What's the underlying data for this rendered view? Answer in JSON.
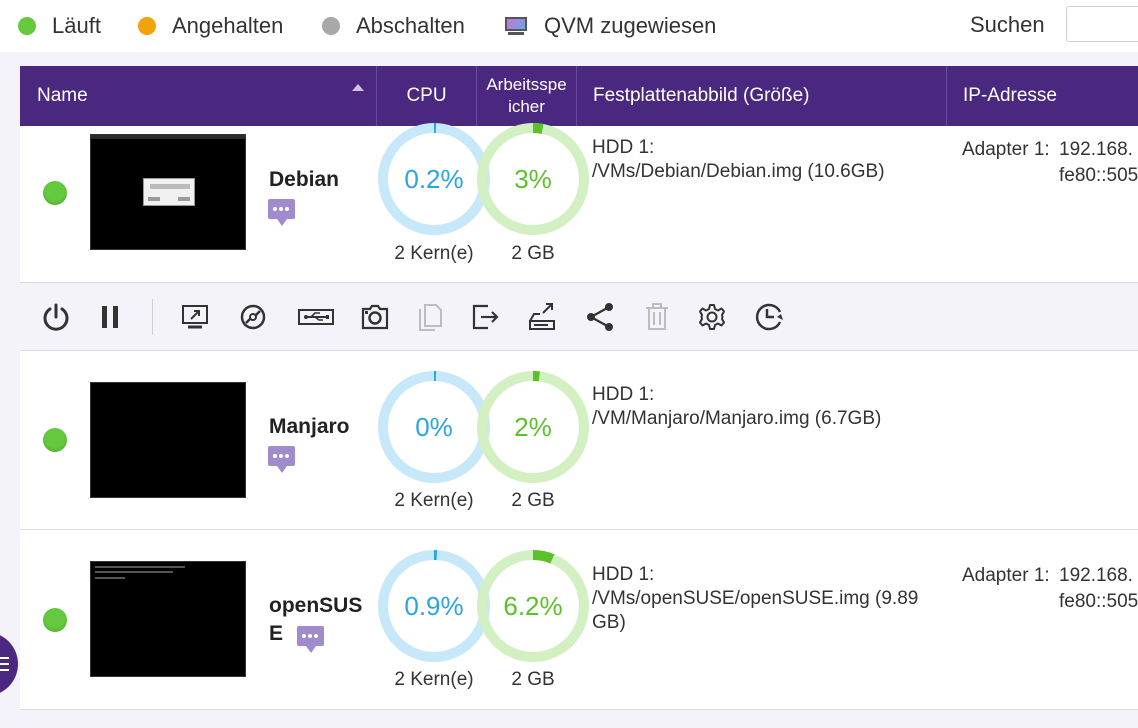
{
  "legend": {
    "running": "Läuft",
    "paused": "Angehalten",
    "shutdown": "Abschalten",
    "qvm_assigned": "QVM zugewiesen"
  },
  "search": {
    "label": "Suchen",
    "placeholder": ""
  },
  "colors": {
    "header_bg": "#4b2880",
    "running": "#64c93e",
    "paused": "#f0a30a",
    "shutdown": "#a8a8a8",
    "cpu_ring": "#2aa5e0",
    "mem_ring": "#5cc02a"
  },
  "table": {
    "headers": {
      "name": "Name",
      "cpu": "CPU",
      "memory_line1": "Arbeitsspe",
      "memory_line2": "icher",
      "disk": "Festplattenabbild (Größe)",
      "ip": "IP-Adresse"
    },
    "rows": [
      {
        "name": "Debian",
        "status": "running",
        "cpu_text": "0.2%",
        "cpu_fraction": 0.002,
        "cores": "2 Kern(e)",
        "mem_text": "3%",
        "mem_fraction": 0.03,
        "mem_size": "2 GB",
        "hdd_label": "HDD 1:",
        "hdd_path": "/VMs/Debian/Debian.img (10.6GB)",
        "ip_label": "Adapter 1:",
        "ip_v4": "192.168.",
        "ip_v6": "fe80::505"
      },
      {
        "name": "Manjaro",
        "status": "running",
        "cpu_text": "0%",
        "cpu_fraction": 0.0,
        "cores": "2 Kern(e)",
        "mem_text": "2%",
        "mem_fraction": 0.02,
        "mem_size": "2 GB",
        "hdd_label": "HDD 1:",
        "hdd_path": "/VM/Manjaro/Manjaro.img (6.7GB)",
        "ip_label": "",
        "ip_v4": "",
        "ip_v6": ""
      },
      {
        "name_line1": "openSUS",
        "name_line2": "E",
        "status": "running",
        "cpu_text": "0.9%",
        "cpu_fraction": 0.009,
        "cores": "2 Kern(e)",
        "mem_text": "6.2%",
        "mem_fraction": 0.062,
        "mem_size": "2 GB",
        "hdd_label": "HDD 1:",
        "hdd_path_line1": "/VMs/openSUSE/openSUSE.img (9.89",
        "hdd_path_line2": "GB)",
        "ip_label": "Adapter 1:",
        "ip_v4": "192.168.",
        "ip_v6": "fe80::505"
      }
    ]
  },
  "toolbar_icons": [
    "power-icon",
    "pause-icon",
    "console-icon",
    "cd-dvd-icon",
    "usb-icon",
    "snapshot-icon",
    "clone-icon",
    "export-icon",
    "migrate-icon",
    "share-icon",
    "delete-icon",
    "settings-icon",
    "schedule-icon"
  ]
}
